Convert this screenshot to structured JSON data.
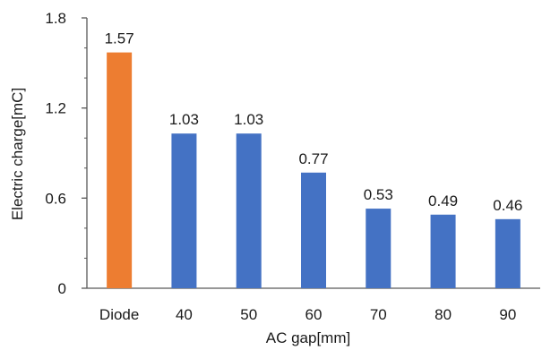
{
  "chart_data": {
    "type": "bar",
    "categories": [
      "Diode",
      "40",
      "50",
      "60",
      "70",
      "80",
      "90"
    ],
    "values": [
      1.57,
      1.03,
      1.03,
      0.77,
      0.53,
      0.49,
      0.46
    ],
    "value_labels": [
      "1.57",
      "1.03",
      "1.03",
      "0.77",
      "0.53",
      "0.49",
      "0.46"
    ],
    "bar_colors": [
      "#ED7D31",
      "#4472C4",
      "#4472C4",
      "#4472C4",
      "#4472C4",
      "#4472C4",
      "#4472C4"
    ],
    "xlabel": "AC gap[mm]",
    "ylabel": "Electric charge[mC]",
    "ylim": [
      0,
      1.8
    ],
    "yticks": [
      0,
      0.6,
      1.2,
      1.8
    ],
    "ytick_labels": [
      "0",
      "0.6",
      "1.2",
      "1.8"
    ],
    "grid": false,
    "legend": "none"
  }
}
